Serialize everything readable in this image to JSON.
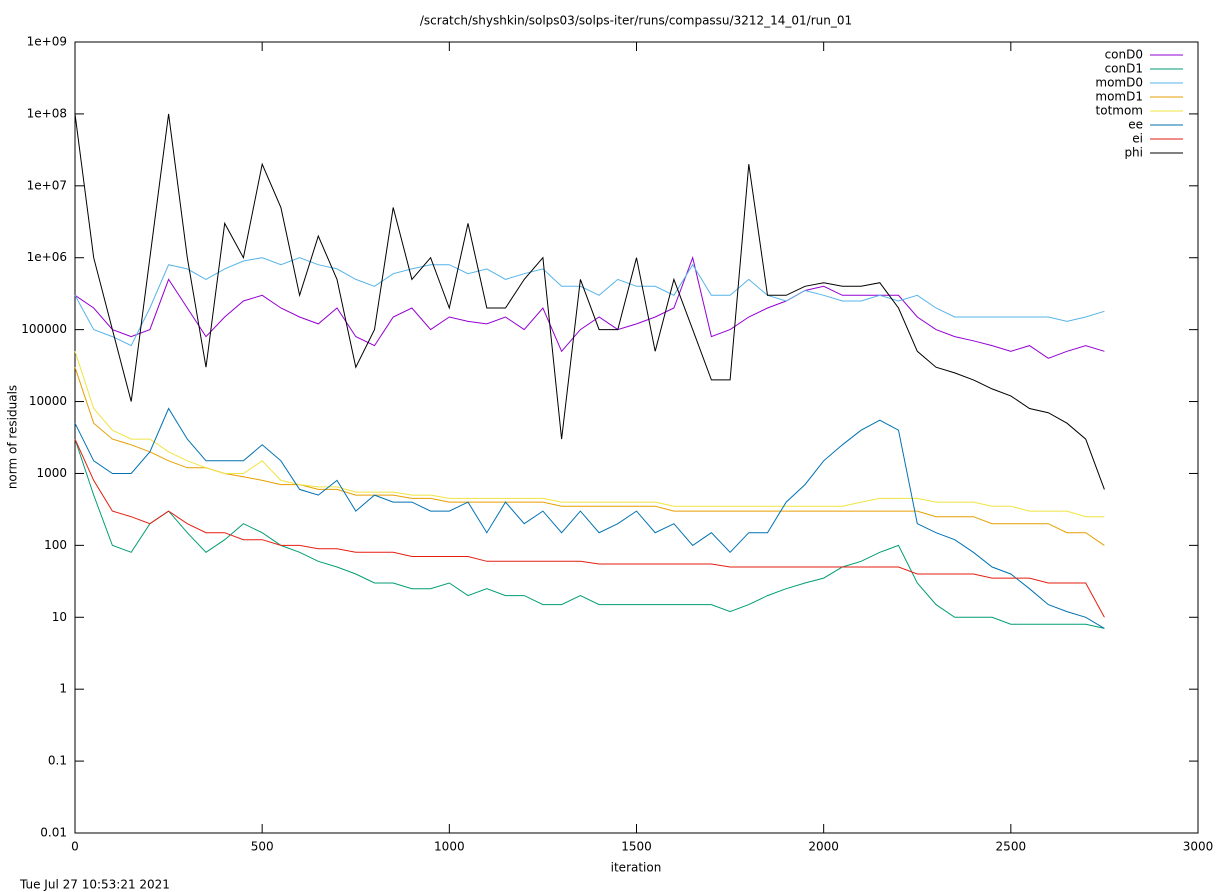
{
  "chart_data": {
    "type": "line",
    "title": "/scratch/shyshkin/solps03/solps-iter/runs/compassu/3212_14_01/run_01",
    "x_label": "iteration",
    "y_label": "norm of residuals",
    "timestamp": "Tue Jul 27 10:53:21 2021",
    "log_y": true,
    "grid": false,
    "legend": "top right",
    "xlim": [
      0,
      3000
    ],
    "xticks": [
      0,
      500,
      1000,
      1500,
      2000,
      2500,
      3000
    ],
    "ylim": [
      0.01,
      1000000000
    ],
    "yticks": [
      {
        "value": 1000000000,
        "label": "1e+09"
      },
      {
        "value": 100000000,
        "label": "1e+08"
      },
      {
        "value": 10000000,
        "label": "1e+07"
      },
      {
        "value": 1000000,
        "label": "1e+06"
      },
      100000,
      10000,
      1000,
      100,
      10,
      1,
      0.1,
      0.01
    ],
    "x": [
      0,
      50,
      100,
      150,
      200,
      250,
      300,
      350,
      400,
      450,
      500,
      550,
      600,
      650,
      700,
      750,
      800,
      850,
      900,
      950,
      1000,
      1050,
      1100,
      1150,
      1200,
      1250,
      1300,
      1350,
      1400,
      1450,
      1500,
      1550,
      1600,
      1650,
      1700,
      1750,
      1800,
      1850,
      1900,
      1950,
      2000,
      2050,
      2100,
      2150,
      2200,
      2250,
      2300,
      2350,
      2400,
      2450,
      2500,
      2550,
      2600,
      2650,
      2700,
      2750
    ],
    "series": [
      {
        "name": "conD0",
        "color": "#9400d3",
        "values": [
          300000,
          200000,
          100000,
          80000,
          100000,
          500000,
          200000,
          80000,
          150000,
          250000,
          300000,
          200000,
          150000,
          120000,
          200000,
          80000,
          60000,
          150000,
          200000,
          100000,
          150000,
          130000,
          120000,
          150000,
          100000,
          200000,
          50000,
          100000,
          150000,
          100000,
          120000,
          150000,
          200000,
          1000000,
          80000,
          100000,
          150000,
          200000,
          250000,
          350000,
          400000,
          300000,
          300000,
          300000,
          300000,
          150000,
          100000,
          80000,
          70000,
          60000,
          50000,
          60000,
          40000,
          50000,
          60000,
          50000
        ]
      },
      {
        "name": "conD1",
        "color": "#009e73",
        "values": [
          3000,
          500,
          100,
          80,
          200,
          300,
          150,
          80,
          120,
          200,
          150,
          100,
          80,
          60,
          50,
          40,
          30,
          30,
          25,
          25,
          30,
          20,
          25,
          20,
          20,
          15,
          15,
          20,
          15,
          15,
          15,
          15,
          15,
          15,
          15,
          12,
          15,
          20,
          25,
          30,
          35,
          50,
          60,
          80,
          100,
          30,
          15,
          10,
          10,
          10,
          8,
          8,
          8,
          8,
          8,
          7
        ]
      },
      {
        "name": "momD0",
        "color": "#56b4e9",
        "values": [
          300000,
          100000,
          80000,
          60000,
          200000,
          800000,
          700000,
          500000,
          700000,
          900000,
          1000000,
          800000,
          1000000,
          800000,
          700000,
          500000,
          400000,
          600000,
          700000,
          800000,
          800000,
          600000,
          700000,
          500000,
          600000,
          700000,
          400000,
          400000,
          300000,
          500000,
          400000,
          400000,
          300000,
          800000,
          300000,
          300000,
          500000,
          300000,
          250000,
          350000,
          300000,
          250000,
          250000,
          300000,
          250000,
          300000,
          200000,
          150000,
          150000,
          150000,
          150000,
          150000,
          150000,
          130000,
          150000,
          180000
        ]
      },
      {
        "name": "momD1",
        "color": "#e69f00",
        "values": [
          30000,
          5000,
          3000,
          2500,
          2000,
          1500,
          1200,
          1200,
          1000,
          900,
          800,
          700,
          700,
          600,
          600,
          500,
          500,
          500,
          450,
          450,
          400,
          400,
          400,
          400,
          400,
          400,
          350,
          350,
          350,
          350,
          350,
          350,
          300,
          300,
          300,
          300,
          300,
          300,
          300,
          300,
          300,
          300,
          300,
          300,
          300,
          300,
          250,
          250,
          250,
          200,
          200,
          200,
          200,
          150,
          150,
          100
        ]
      },
      {
        "name": "totmom",
        "color": "#f0e442",
        "values": [
          50000,
          8000,
          4000,
          3000,
          3000,
          2000,
          1500,
          1200,
          1000,
          1000,
          1500,
          800,
          700,
          650,
          650,
          550,
          550,
          550,
          500,
          500,
          450,
          450,
          450,
          450,
          450,
          450,
          400,
          400,
          400,
          400,
          400,
          400,
          350,
          350,
          350,
          350,
          350,
          350,
          350,
          350,
          350,
          350,
          400,
          450,
          450,
          450,
          400,
          400,
          400,
          350,
          350,
          300,
          300,
          300,
          250,
          250
        ]
      },
      {
        "name": "ee",
        "color": "#0072b2",
        "values": [
          5000,
          1500,
          1000,
          1000,
          2000,
          8000,
          3000,
          1500,
          1500,
          1500,
          2500,
          1500,
          600,
          500,
          800,
          300,
          500,
          400,
          400,
          300,
          300,
          400,
          150,
          400,
          200,
          300,
          150,
          300,
          150,
          200,
          300,
          150,
          200,
          100,
          150,
          80,
          150,
          150,
          400,
          700,
          1500,
          2500,
          4000,
          5500,
          4000,
          200,
          150,
          120,
          80,
          50,
          40,
          25,
          15,
          12,
          10,
          7
        ]
      },
      {
        "name": "ei",
        "color": "#e51e10",
        "values": [
          3000,
          800,
          300,
          250,
          200,
          300,
          200,
          150,
          150,
          120,
          120,
          100,
          100,
          90,
          90,
          80,
          80,
          80,
          70,
          70,
          70,
          70,
          60,
          60,
          60,
          60,
          60,
          60,
          55,
          55,
          55,
          55,
          55,
          55,
          55,
          50,
          50,
          50,
          50,
          50,
          50,
          50,
          50,
          50,
          50,
          40,
          40,
          40,
          40,
          35,
          35,
          35,
          30,
          30,
          30,
          10
        ]
      },
      {
        "name": "phi",
        "color": "#000000",
        "values": [
          100000000,
          1000000,
          100000,
          10000,
          1000000,
          100000000,
          1000000,
          30000,
          3000000,
          1000000,
          20000000,
          5000000,
          300000,
          2000000,
          500000,
          30000,
          100000,
          5000000,
          500000,
          1000000,
          200000,
          3000000,
          200000,
          200000,
          500000,
          1000000,
          3000,
          500000,
          100000,
          100000,
          1000000,
          50000,
          500000,
          100000,
          20000,
          20000,
          20000000,
          300000,
          300000,
          400000,
          450000,
          400000,
          400000,
          450000,
          200000,
          50000,
          30000,
          25000,
          20000,
          15000,
          12000,
          8000,
          7000,
          5000,
          3000,
          600
        ]
      }
    ]
  }
}
